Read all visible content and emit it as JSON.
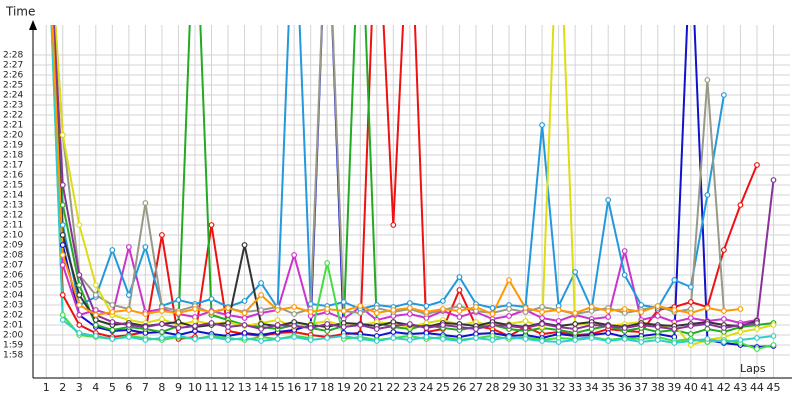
{
  "chart_data": {
    "type": "line",
    "y_title": "Time",
    "x_title": "Laps",
    "grid": true,
    "xlim": [
      0.2,
      46
    ],
    "ylim": [
      115.7,
      151
    ],
    "xticks": [
      1,
      2,
      3,
      4,
      5,
      6,
      7,
      8,
      9,
      10,
      11,
      12,
      13,
      14,
      15,
      16,
      17,
      18,
      19,
      20,
      21,
      22,
      23,
      24,
      25,
      26,
      27,
      28,
      29,
      30,
      31,
      32,
      33,
      34,
      35,
      36,
      37,
      38,
      39,
      40,
      41,
      42,
      43,
      44,
      45
    ],
    "yticks": [
      {
        "value": 118,
        "label": "1:58"
      },
      {
        "value": 119,
        "label": "1:59"
      },
      {
        "value": 120,
        "label": "2:00"
      },
      {
        "value": 121,
        "label": "2:01"
      },
      {
        "value": 122,
        "label": "2:02"
      },
      {
        "value": 123,
        "label": "2:03"
      },
      {
        "value": 124,
        "label": "2:04"
      },
      {
        "value": 125,
        "label": "2:05"
      },
      {
        "value": 126,
        "label": "2:06"
      },
      {
        "value": 127,
        "label": "2:07"
      },
      {
        "value": 128,
        "label": "2:08"
      },
      {
        "value": 129,
        "label": "2:09"
      },
      {
        "value": 130,
        "label": "2:10"
      },
      {
        "value": 131,
        "label": "2:11"
      },
      {
        "value": 132,
        "label": "2:12"
      },
      {
        "value": 133,
        "label": "2:13"
      },
      {
        "value": 134,
        "label": "2:14"
      },
      {
        "value": 135,
        "label": "2:15"
      },
      {
        "value": 136,
        "label": "2:16"
      },
      {
        "value": 137,
        "label": "2:17"
      },
      {
        "value": 138,
        "label": "2:18"
      },
      {
        "value": 139,
        "label": "2:19"
      },
      {
        "value": 140,
        "label": "2:20"
      },
      {
        "value": 141,
        "label": "2:21"
      },
      {
        "value": 142,
        "label": "2:22"
      },
      {
        "value": 143,
        "label": "2:23"
      },
      {
        "value": 144,
        "label": "2:24"
      },
      {
        "value": 145,
        "label": "2:25"
      },
      {
        "value": 146,
        "label": "2:26"
      },
      {
        "value": 147,
        "label": "2:27"
      },
      {
        "value": 148,
        "label": "2:28"
      }
    ],
    "x": [
      1,
      2,
      3,
      4,
      5,
      6,
      7,
      8,
      9,
      10,
      11,
      12,
      13,
      14,
      15,
      16,
      17,
      18,
      19,
      20,
      21,
      22,
      23,
      24,
      25,
      26,
      27,
      28,
      29,
      30,
      31,
      32,
      33,
      34,
      35,
      36,
      37,
      38,
      39,
      40,
      41,
      42,
      43,
      44,
      45
    ],
    "series": [
      {
        "color": "#ee1111",
        "values": [
          165,
          124,
          121,
          120.2,
          119.8,
          120,
          120.3,
          130,
          119.6,
          119.8,
          131,
          120.4,
          120.1,
          119.9,
          120.2,
          120.3,
          120,
          119.8,
          120.1,
          120.2,
          165,
          131,
          165,
          120.3,
          120.6,
          124.5,
          120.9,
          120.6,
          119.9,
          120.8,
          120.1,
          120.3,
          120,
          120.1,
          120.6,
          120.4,
          120.3,
          122.5,
          122.8,
          123.3,
          122.8,
          128.5,
          133,
          137,
          null
        ]
      },
      {
        "color": "#1111cc",
        "values": [
          165,
          129,
          122,
          120.8,
          120.4,
          120.5,
          120.2,
          120.3,
          120,
          120.4,
          120.1,
          119.9,
          120.2,
          120,
          120.3,
          120.5,
          121,
          165,
          120.2,
          120.1,
          119.9,
          120.3,
          120.1,
          120.2,
          120,
          119.8,
          120.1,
          120.2,
          119.9,
          120,
          119.7,
          120.1,
          119.9,
          120,
          120.2,
          119.8,
          119.9,
          120.1,
          119.8,
          160,
          119.5,
          119.2,
          119,
          118.8,
          118.9
        ]
      },
      {
        "color": "#22aa22",
        "values": [
          165,
          133,
          125,
          121,
          120.5,
          120.8,
          120.6,
          120.3,
          120.9,
          165,
          122,
          121.5,
          121,
          120.8,
          120.6,
          121,
          120.7,
          120.4,
          120.9,
          165,
          121.2,
          120.8,
          120.6,
          121,
          120.7,
          120.5,
          120.8,
          121,
          120.6,
          120.4,
          120.7,
          120.5,
          120.2,
          120.6,
          120.9,
          120.4,
          120.7,
          120.3,
          120.5,
          120.1,
          120.6,
          120.3,
          120.8,
          121,
          121.2
        ]
      },
      {
        "color": "#cc33cc",
        "values": [
          165,
          127,
          122,
          122.5,
          122,
          128.8,
          122.3,
          122.6,
          122.1,
          121.8,
          122.4,
          122,
          121.7,
          122.2,
          122.5,
          128,
          121.9,
          122.3,
          121.6,
          122.8,
          121.5,
          121.9,
          122.1,
          121.7,
          122.4,
          121.8,
          122.3,
          121.6,
          121.9,
          122.5,
          121.7,
          121.4,
          122,
          121.6,
          121.8,
          128.4,
          121.5,
          121.9,
          121.3,
          121.7,
          121.4,
          121.6,
          121.2,
          121.5,
          null
        ]
      },
      {
        "color": "#2299dd",
        "values": [
          165,
          131,
          123,
          123.8,
          128.5,
          124,
          128.8,
          122.9,
          123.5,
          123.1,
          123.6,
          122.8,
          123.4,
          125.2,
          122.7,
          165,
          123.1,
          122.9,
          123.3,
          122.6,
          123,
          122.8,
          123.2,
          122.9,
          123.4,
          125.8,
          123.1,
          122.7,
          123,
          122.8,
          141,
          122.9,
          126.3,
          122.6,
          133.5,
          126,
          123,
          122.7,
          125.5,
          124.8,
          134,
          144,
          null,
          null,
          null
        ]
      },
      {
        "color": "#999988",
        "values": [
          165,
          140,
          126,
          124,
          123,
          122.6,
          133.2,
          122.8,
          122.4,
          122.9,
          122.2,
          122.7,
          122.3,
          122.5,
          122.8,
          122.1,
          122.6,
          165,
          122.4,
          122.2,
          122.7,
          122.3,
          122.6,
          122.1,
          122.5,
          122.9,
          122.4,
          122.2,
          122.6,
          122.3,
          122.8,
          122.5,
          122.1,
          122.4,
          122.7,
          122.2,
          122.5,
          122.9,
          122.3,
          122.6,
          145.5,
          122.4,
          null,
          null,
          null
        ]
      },
      {
        "color": "#dddd11",
        "values": [
          165,
          140,
          131,
          125,
          122,
          121.5,
          121.2,
          121.6,
          121,
          121.4,
          121.1,
          121.3,
          120.9,
          121.2,
          121.5,
          120.8,
          121.1,
          121.4,
          120.9,
          121,
          121.3,
          121.1,
          120.8,
          121.2,
          121.5,
          121,
          121.3,
          120.9,
          121.1,
          121.4,
          120.8,
          165,
          121,
          121.2,
          120.9,
          121.1,
          121.3,
          120.8,
          121,
          119,
          119.5,
          119.8,
          120.3,
          120.6,
          121
        ]
      },
      {
        "color": "#333333",
        "values": [
          165,
          130,
          124,
          121.5,
          121,
          121.2,
          120.9,
          121.1,
          121.3,
          120.8,
          121,
          121.2,
          129,
          121.1,
          120.9,
          121.3,
          121,
          120.8,
          121.2,
          121.1,
          120.9,
          121.3,
          121,
          120.8,
          121.2,
          121.1,
          120.9,
          121.3,
          121,
          120.8,
          121.2,
          120.9,
          121.1,
          121.3,
          121,
          120.8,
          121.2,
          121,
          120.9,
          121.1,
          121.3,
          121,
          120.9,
          121.4,
          null
        ]
      },
      {
        "color": "#44dd44",
        "values": [
          165,
          122,
          120,
          119.8,
          119.6,
          119.9,
          119.7,
          119.5,
          119.8,
          119.6,
          119.9,
          119.7,
          119.5,
          119.8,
          119.6,
          119.9,
          119.7,
          127.2,
          119.6,
          119.8,
          119.5,
          119.7,
          119.9,
          119.6,
          119.8,
          119.5,
          119.7,
          119.9,
          119.6,
          119.8,
          119.5,
          119.7,
          119.6,
          119.8,
          119.5,
          119.7,
          119.6,
          119.8,
          119.4,
          119.6,
          119.3,
          119.5,
          119.2,
          118.6,
          119
        ]
      },
      {
        "color": "#883399",
        "values": [
          165,
          135,
          126,
          122,
          121.3,
          121,
          120.8,
          121.1,
          120.7,
          120.9,
          121.2,
          120.8,
          121,
          120.6,
          121,
          120.9,
          120.7,
          121.1,
          120.8,
          121,
          120.6,
          120.9,
          121.1,
          120.7,
          121,
          120.8,
          120.6,
          121,
          120.9,
          120.7,
          121.1,
          120.8,
          120.6,
          121,
          120.9,
          120.7,
          121,
          120.8,
          120.6,
          120.9,
          121.1,
          120.7,
          121,
          121.2,
          135.5
        ]
      },
      {
        "color": "#33cccc",
        "values": [
          165,
          121.5,
          120.2,
          119.9,
          119.6,
          119.8,
          119.5,
          119.7,
          119.9,
          119.6,
          119.8,
          119.5,
          119.7,
          119.4,
          119.6,
          119.8,
          119.5,
          119.7,
          119.9,
          119.6,
          119.4,
          119.7,
          119.5,
          119.8,
          119.6,
          119.4,
          119.7,
          119.5,
          119.8,
          119.6,
          119.4,
          119.3,
          119.5,
          119.7,
          119.4,
          119.6,
          119.3,
          119.5,
          119.2,
          119.4,
          119.6,
          119.3,
          119.5,
          119.7,
          119.9
        ]
      },
      {
        "color": "#ff9900",
        "values": [
          165,
          128,
          123,
          122,
          122.3,
          122.5,
          122.1,
          122.4,
          122.2,
          122.6,
          122.3,
          122.7,
          122.2,
          124,
          122.5,
          122.8,
          122.3,
          122.6,
          122.4,
          122.9,
          122.2,
          122.5,
          122.7,
          122.3,
          122.6,
          122.4,
          122.8,
          122.1,
          125.5,
          122.7,
          122.3,
          122.5,
          122.2,
          122.8,
          122.4,
          122.6,
          122.3,
          122.9,
          122.5,
          122.2,
          122.7,
          122.4,
          122.6,
          null,
          null
        ]
      }
    ]
  }
}
